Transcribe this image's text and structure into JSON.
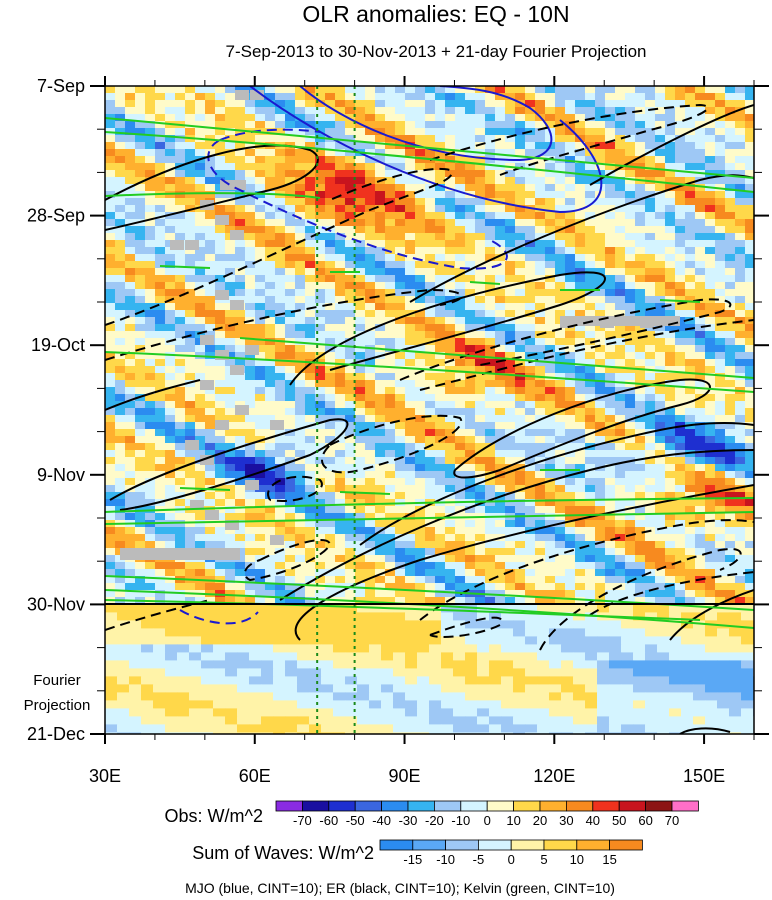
{
  "chart_data": {
    "type": "heatmap",
    "title": "OLR anomalies: EQ - 10N",
    "subtitle": "7-Sep-2013 to 30-Nov-2013 + 21-day Fourier Projection",
    "x_axis": {
      "range": [
        30,
        160
      ],
      "ticks": [
        {
          "value": 30,
          "label": "30E"
        },
        {
          "value": 60,
          "label": "60E"
        },
        {
          "value": 90,
          "label": "90E"
        },
        {
          "value": 120,
          "label": "120E"
        },
        {
          "value": 150,
          "label": "150E"
        }
      ]
    },
    "y_axis": {
      "range_days": [
        0,
        105
      ],
      "ticks": [
        {
          "day": 0,
          "label": "7-Sep"
        },
        {
          "day": 21,
          "label": "28-Sep"
        },
        {
          "day": 42,
          "label": "19-Oct"
        },
        {
          "day": 63,
          "label": "9-Nov"
        },
        {
          "day": 84,
          "label": "30-Nov"
        },
        {
          "day": 105,
          "label": "21-Dec"
        }
      ],
      "projection_note_lines": [
        "Fourier",
        "Projection"
      ]
    },
    "reference_lines_lon": [
      72.5,
      80
    ],
    "obs_end_day": 84,
    "legend_obs": {
      "label": "Obs: W/m^2",
      "levels": [
        "-70",
        "-60",
        "-50",
        "-40",
        "-30",
        "-20",
        "-10",
        "0",
        "10",
        "20",
        "30",
        "40",
        "50",
        "60",
        "70"
      ],
      "colors": [
        "#8a2be2",
        "#1a0fa0",
        "#1e2fd0",
        "#3a66e0",
        "#2b8cf0",
        "#36b4f0",
        "#9ec8f5",
        "#d4f4ff",
        "#fffbc9",
        "#ffd84a",
        "#ffb02e",
        "#f78a1f",
        "#f0321e",
        "#c8141e",
        "#8c1414",
        "#ff6fc8"
      ]
    },
    "legend_waves": {
      "label": "Sum of Waves: W/m^2",
      "levels": [
        "-15",
        "-10",
        "-5",
        "0",
        "5",
        "10",
        "15"
      ],
      "colors": [
        "#2b8cf0",
        "#5aa8f5",
        "#9ec8f5",
        "#d4f4ff",
        "#fff3a8",
        "#ffd84a",
        "#ffb02e",
        "#f78a1f"
      ]
    },
    "caption": "MJO (blue, CINT=10); ER (black, CINT=10); Kelvin (green, CINT=10)",
    "series": [
      {
        "name": "MJO",
        "color": "#1a1ad0"
      },
      {
        "name": "ER",
        "color": "#000000"
      },
      {
        "name": "Kelvin",
        "color": "#22cc22"
      }
    ]
  }
}
